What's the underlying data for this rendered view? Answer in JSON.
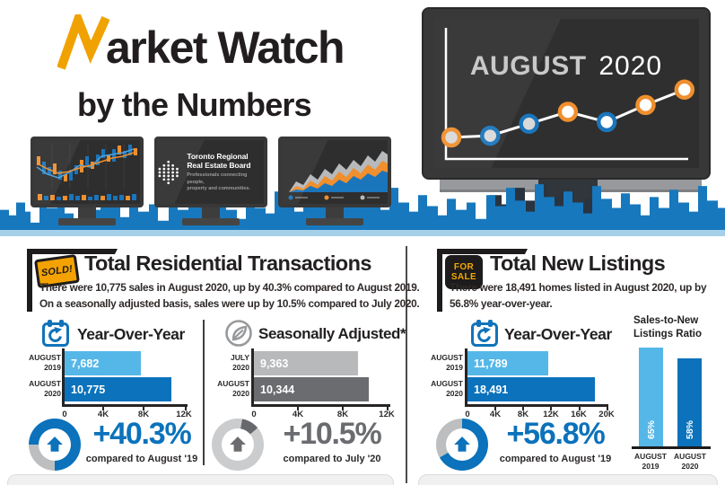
{
  "header": {
    "title": "Market Watch",
    "title_rest": "arket Watch",
    "subtitle": "by the Numbers"
  },
  "trreb_logo": {
    "name_line1": "Toronto Regional",
    "name_line2": "Real Estate Board",
    "tagline_line1": "Professionals connecting people,",
    "tagline_line2": "property and communities."
  },
  "hero": {
    "month": "AUGUST",
    "year": "2020"
  },
  "colors": {
    "accent_yellow": "#f3a202",
    "light_blue": "#55b7e8",
    "dark_blue": "#0b72bb",
    "light_gray_bar": "#b7b9bb",
    "dark_gray_bar": "#6b6c6f",
    "orange": "#ef8f2e",
    "skyline_blue": "#1778bd"
  },
  "transactions": {
    "badge": "SOLD!",
    "title": "Total Residential Transactions",
    "desc_line1": "There were 10,775 sales in August 2020, up by 40.3% compared to August 2019.",
    "desc_line2": "On a seasonally adjusted basis, sales were up by 10.5% compared to July 2020.",
    "yoy_stat": {
      "value": "+40.3%",
      "caption": "compared to August '19",
      "donut": {
        "start": 270,
        "sweep": 270,
        "arc": "#0b72bb",
        "track": "#bcbec0"
      }
    },
    "sa_stat": {
      "value": "+10.5%",
      "caption": "compared to July '20",
      "donut": {
        "start": 10,
        "sweep": 40,
        "arc": "#66686b",
        "track": "#cbccce"
      }
    }
  },
  "listings": {
    "badge_line1": "FOR",
    "badge_line2": "SALE",
    "title": "Total New Listings",
    "desc_line1": "There were 18,491 homes listed in August 2020, up by",
    "desc_line2": "56.8% year-over-year.",
    "yoy_stat": {
      "value": "+56.8%",
      "caption": "compared to August '19",
      "donut": {
        "start": 0,
        "sweep": 240,
        "arc": "#0b72bb",
        "track": "#bcbec0"
      }
    }
  },
  "chart_data": [
    {
      "id": "transactions_year_over_year",
      "type": "bar",
      "orientation": "horizontal",
      "title": "Year-Over-Year",
      "categories": [
        "AUGUST 2019",
        "AUGUST 2020"
      ],
      "cat_lines": [
        [
          "AUGUST",
          "2019"
        ],
        [
          "AUGUST",
          "2020"
        ]
      ],
      "values": [
        7682,
        10775
      ],
      "value_labels": [
        "7,682",
        "10,775"
      ],
      "colors": [
        "#55b7e8",
        "#0b72bb"
      ],
      "xlim": [
        0,
        12000
      ],
      "xticks": [
        "0",
        "4K",
        "8K",
        "12K"
      ]
    },
    {
      "id": "transactions_seasonally_adjusted",
      "type": "bar",
      "orientation": "horizontal",
      "title": "Seasonally Adjusted*",
      "categories": [
        "JULY 2020",
        "AUGUST 2020"
      ],
      "cat_lines": [
        [
          "JULY",
          "2020"
        ],
        [
          "AUGUST",
          "2020"
        ]
      ],
      "values": [
        9363,
        10344
      ],
      "value_labels": [
        "9,363",
        "10,344"
      ],
      "colors": [
        "#b7b9bb",
        "#6b6c6f"
      ],
      "xlim": [
        0,
        12000
      ],
      "xticks": [
        "0",
        "4K",
        "8K",
        "12K"
      ]
    },
    {
      "id": "listings_year_over_year",
      "type": "bar",
      "orientation": "horizontal",
      "title": "Year-Over-Year",
      "categories": [
        "AUGUST 2019",
        "AUGUST 2020"
      ],
      "cat_lines": [
        [
          "AUGUST",
          "2019"
        ],
        [
          "AUGUST",
          "2020"
        ]
      ],
      "values": [
        11789,
        18491
      ],
      "value_labels": [
        "11,789",
        "18,491"
      ],
      "colors": [
        "#55b7e8",
        "#0b72bb"
      ],
      "xlim": [
        0,
        20000
      ],
      "xticks": [
        "0",
        "4K",
        "8K",
        "12K",
        "16K",
        "20K"
      ]
    },
    {
      "id": "sales_to_new_listings_ratio",
      "type": "bar",
      "orientation": "vertical",
      "title": "Sales-to-New Listings Ratio",
      "title_lines": [
        "Sales-to-New",
        "Listings Ratio"
      ],
      "categories": [
        "AUGUST 2019",
        "AUGUST 2020"
      ],
      "cat_lines": [
        [
          "AUGUST",
          "2019"
        ],
        [
          "AUGUST",
          "2020"
        ]
      ],
      "values": [
        65,
        58
      ],
      "value_labels": [
        "65%",
        "58%"
      ],
      "colors": [
        "#55b7e8",
        "#0b72bb"
      ],
      "ylim": [
        0,
        100
      ]
    },
    {
      "id": "hero_monitor_trend",
      "type": "line",
      "title": "AUGUST 2020",
      "x": [
        1,
        2,
        3,
        4,
        5,
        6,
        7
      ],
      "y": [
        1.0,
        1.05,
        1.4,
        1.75,
        1.45,
        1.95,
        2.4
      ],
      "point_ring_colors": [
        "#ef8f2e",
        "#1b75bb",
        "#1b75bb",
        "#ef8f2e",
        "#1b75bb",
        "#ef8f2e",
        "#ef8f2e"
      ],
      "point_fill_colors": [
        "#d9d9d9",
        "#d9d9d9",
        "#d9d9d9",
        "#ffffff",
        "#ffffff",
        "#ffffff",
        "#ffffff"
      ]
    }
  ]
}
